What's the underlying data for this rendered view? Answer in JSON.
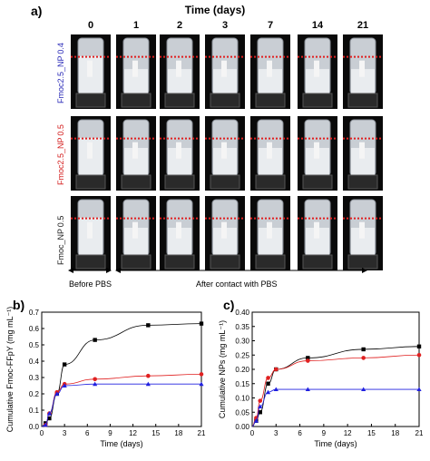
{
  "panel_a": {
    "label": "a)",
    "title": "Time (days)",
    "days": [
      "0",
      "1",
      "2",
      "3",
      "7",
      "14",
      "21"
    ],
    "rows": [
      {
        "label": "Fmoc2.5_NP 0.4",
        "color": "#2b2bb8"
      },
      {
        "label": "Fmoc2.5_NP 0.5",
        "color": "#d42020"
      },
      {
        "label": "Fmoc_NP 0.5",
        "color": "#222222"
      }
    ],
    "captions": {
      "before": "Before PBS",
      "after": "After contact with PBS"
    }
  },
  "panel_b": {
    "label": "b)",
    "chart_data": {
      "type": "scatter",
      "xlabel": "Time (days)",
      "ylabel": "Cumulative Fmoc-FFpY (mg mL⁻¹)",
      "xlim": [
        0,
        21
      ],
      "ylim": [
        0,
        0.7
      ],
      "xticks": [
        0,
        3,
        6,
        9,
        12,
        15,
        18,
        21
      ],
      "yticks": [
        0.0,
        0.1,
        0.2,
        0.3,
        0.4,
        0.5,
        0.6,
        0.7
      ],
      "series": [
        {
          "color": "#000000",
          "marker": "square",
          "x": [
            0.5,
            1,
            2,
            3,
            7,
            14,
            21
          ],
          "y": [
            0.02,
            0.05,
            0.2,
            0.38,
            0.53,
            0.62,
            0.63
          ]
        },
        {
          "color": "#e02020",
          "marker": "circle",
          "x": [
            0.5,
            1,
            2,
            3,
            7,
            14,
            21
          ],
          "y": [
            0.01,
            0.08,
            0.21,
            0.26,
            0.29,
            0.31,
            0.32
          ]
        },
        {
          "color": "#2020e0",
          "marker": "triangle",
          "x": [
            0.5,
            1,
            2,
            3,
            7,
            14,
            21
          ],
          "y": [
            0.01,
            0.08,
            0.2,
            0.25,
            0.26,
            0.26,
            0.26
          ]
        }
      ]
    }
  },
  "panel_c": {
    "label": "c)",
    "chart_data": {
      "type": "scatter",
      "xlabel": "Time (days)",
      "ylabel": "Cumulative NPs (mg mL⁻¹)",
      "xlim": [
        0,
        21
      ],
      "ylim": [
        0,
        0.4
      ],
      "xticks": [
        0,
        3,
        6,
        9,
        12,
        15,
        18,
        21
      ],
      "yticks": [
        0.0,
        0.05,
        0.1,
        0.15,
        0.2,
        0.25,
        0.3,
        0.35,
        0.4
      ],
      "series": [
        {
          "color": "#000000",
          "marker": "square",
          "x": [
            0.5,
            1,
            2,
            3,
            7,
            14,
            21
          ],
          "y": [
            0.02,
            0.05,
            0.15,
            0.2,
            0.24,
            0.27,
            0.28
          ]
        },
        {
          "color": "#e02020",
          "marker": "circle",
          "x": [
            0.5,
            1,
            2,
            3,
            7,
            14,
            21
          ],
          "y": [
            0.03,
            0.09,
            0.17,
            0.2,
            0.23,
            0.24,
            0.25
          ]
        },
        {
          "color": "#2020e0",
          "marker": "triangle",
          "x": [
            0.5,
            1,
            2,
            3,
            7,
            14,
            21
          ],
          "y": [
            0.02,
            0.07,
            0.12,
            0.13,
            0.13,
            0.13,
            0.13
          ]
        }
      ]
    }
  }
}
